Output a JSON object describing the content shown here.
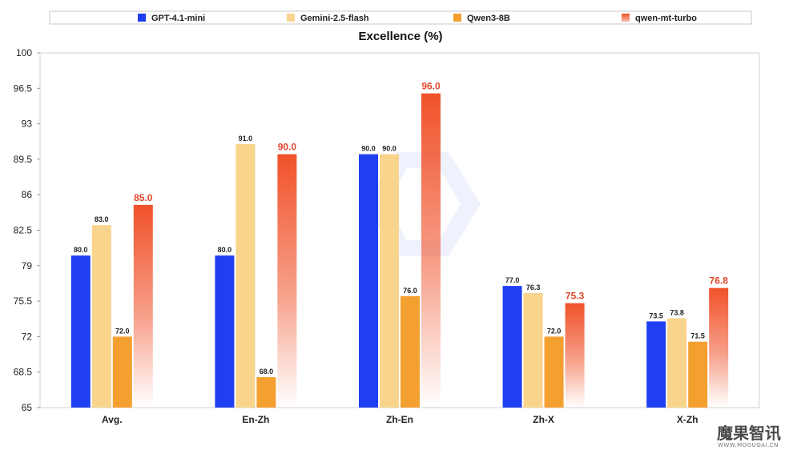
{
  "chart_data": {
    "type": "bar",
    "title": "Excellence (%)",
    "xlabel": "",
    "ylabel": "",
    "ylim": [
      65,
      100
    ],
    "yticks": [
      "65",
      "68.5",
      "72",
      "75.5",
      "79",
      "82.5",
      "86",
      "89.5",
      "93",
      "96.5",
      "100"
    ],
    "categories": [
      "Avg.",
      "En-Zh",
      "Zh-En",
      "Zh-X",
      "X-Zh"
    ],
    "grid": false,
    "legend_position": "top",
    "series": [
      {
        "name": "GPT-4.1-mini",
        "color": "#1f3ff0",
        "style": "solid",
        "values": [
          80.0,
          80.0,
          90.0,
          77.0,
          73.5
        ],
        "labels": [
          "80.0",
          "80.0",
          "90.0",
          "77.0",
          "73.5"
        ]
      },
      {
        "name": "Gemini-2.5-flash",
        "color": "#f9d48c",
        "style": "solid",
        "values": [
          83.0,
          91.0,
          90.0,
          76.3,
          73.8
        ],
        "labels": [
          "83.0",
          "91.0",
          "90.0",
          "76.3",
          "73.8"
        ]
      },
      {
        "name": "Qwen3-8B",
        "color": "#f4a030",
        "style": "solid",
        "values": [
          72.0,
          68.0,
          76.0,
          72.0,
          71.5
        ],
        "labels": [
          "72.0",
          "68.0",
          "76.0",
          "72.0",
          "71.5"
        ]
      },
      {
        "name": "qwen-mt-turbo",
        "color": "#f0522a",
        "style": "gradient",
        "highlight_label_color": "#e0462a",
        "values": [
          85.0,
          90.0,
          96.0,
          75.3,
          76.8
        ],
        "labels": [
          "85.0",
          "90.0",
          "96.0",
          "75.3",
          "76.8"
        ]
      }
    ]
  },
  "watermark": {
    "text": "魔果智讯",
    "subtext": "WWW.MOGUOAI.CN"
  }
}
